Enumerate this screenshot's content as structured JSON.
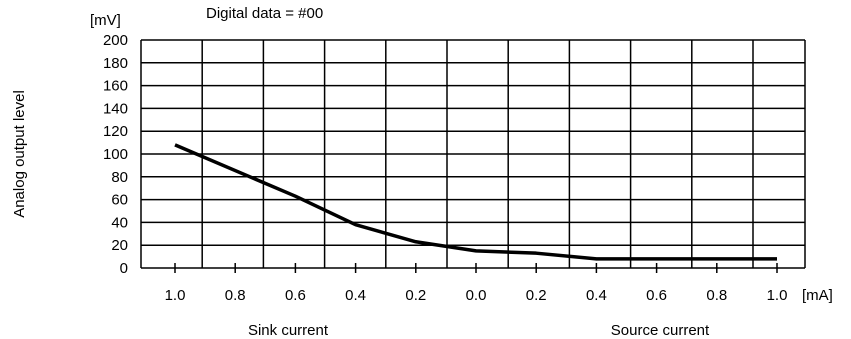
{
  "chart_data": {
    "type": "line",
    "title": "Digital data = #00",
    "ylabel": "Analog output level",
    "y_unit": "[mV]",
    "x_unit": "[mA]",
    "x_tick_labels": [
      "1.0",
      "0.8",
      "0.6",
      "0.4",
      "0.2",
      "0.0",
      "0.2",
      "0.4",
      "0.6",
      "0.8",
      "1.0"
    ],
    "y_tick_labels": [
      "0",
      "20",
      "40",
      "60",
      "80",
      "100",
      "120",
      "140",
      "160",
      "180",
      "200"
    ],
    "x_region_labels": [
      "Sink current",
      "Source current"
    ],
    "ylim": [
      0,
      200
    ],
    "xlim": [
      -1.0,
      1.0
    ],
    "x_note": "negative x = sink current, positive x = source current",
    "grid": true,
    "series": [
      {
        "x": [
          -1.0,
          -0.6,
          -0.4,
          -0.2,
          0.0,
          0.2,
          0.4,
          0.6,
          0.8,
          1.0
        ],
        "values": [
          108,
          63,
          38,
          23,
          15,
          13,
          8,
          8,
          8,
          8
        ]
      }
    ]
  }
}
